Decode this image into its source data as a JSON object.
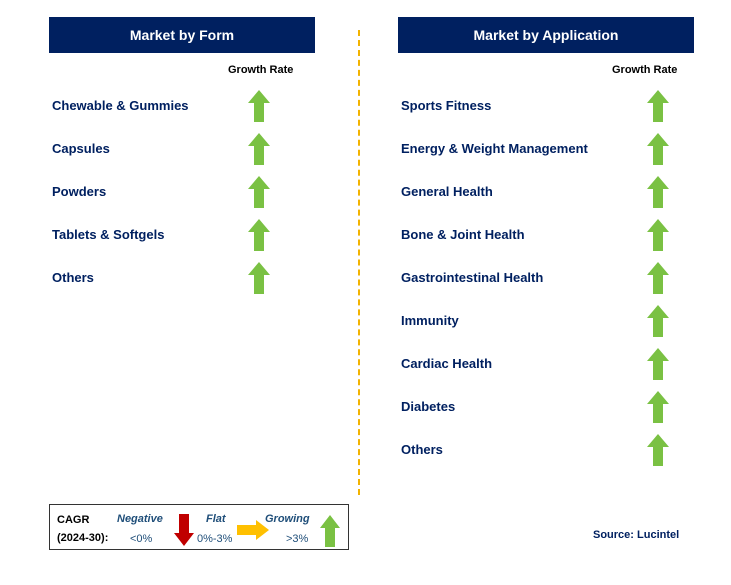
{
  "form": {
    "title": "Market by Form",
    "growth_rate_label": "Growth Rate",
    "items": [
      {
        "label": "Chewable & Gummies",
        "trend": "growing"
      },
      {
        "label": "Capsules",
        "trend": "growing"
      },
      {
        "label": "Powders",
        "trend": "growing"
      },
      {
        "label": "Tablets & Softgels",
        "trend": "growing"
      },
      {
        "label": "Others",
        "trend": "growing"
      }
    ]
  },
  "application": {
    "title": "Market by Application",
    "growth_rate_label": "Growth Rate",
    "items": [
      {
        "label": "Sports Fitness",
        "trend": "growing"
      },
      {
        "label": "Energy & Weight Management",
        "trend": "growing"
      },
      {
        "label": "General Health",
        "trend": "growing"
      },
      {
        "label": "Bone & Joint Health",
        "trend": "growing"
      },
      {
        "label": "Gastrointestinal Health",
        "trend": "growing"
      },
      {
        "label": "Immunity",
        "trend": "growing"
      },
      {
        "label": "Cardiac Health",
        "trend": "growing"
      },
      {
        "label": "Diabetes",
        "trend": "growing"
      },
      {
        "label": "Others",
        "trend": "growing"
      }
    ]
  },
  "legend": {
    "cagr_label": "CAGR",
    "period": "(2024-30):",
    "negative_label": "Negative",
    "negative_value": "<0%",
    "flat_label": "Flat",
    "flat_value": "0%-3%",
    "growing_label": "Growing",
    "growing_value": ">3%"
  },
  "source": "Source: Lucintel",
  "colors": {
    "header_bg": "#002060",
    "label_text": "#002060",
    "divider": "#f2b300",
    "growing": "#7ac143",
    "negative": "#c00000",
    "flat": "#ffc000"
  }
}
